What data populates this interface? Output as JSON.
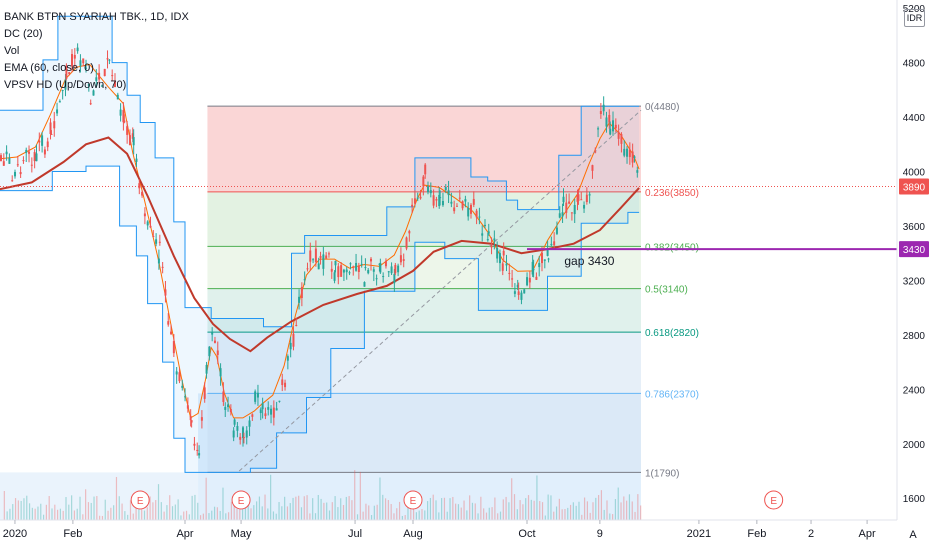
{
  "legend": {
    "title": "BANK BTPN SYARIAH TBK., 1D, IDX",
    "indicators": [
      "DC (20)",
      "Vol",
      "EMA (60, close, 0)",
      "VPSV HD (Up/Down, 70)"
    ]
  },
  "currency_label": "IDR",
  "auto_label": "A",
  "colors": {
    "up": "#26a69a",
    "down": "#ef5350",
    "ema": "#c0392b",
    "donchian": "#2196f3",
    "donchian_mid": "#ff6d00",
    "gap_line": "#9c27b0",
    "price_tag": "#ef5350"
  },
  "chart_data": {
    "type": "candlestick",
    "symbol": "BANK BTPN SYARIAH TBK.",
    "interval": "1D",
    "exchange": "IDX",
    "y_axis": {
      "ticks": [
        1600,
        2000,
        2400,
        2800,
        3200,
        3600,
        4000,
        4400,
        4800,
        5200
      ],
      "tick_labels": [
        "1600",
        "2000",
        "2400",
        "2800",
        "3200",
        "3600",
        "4000",
        "4400",
        "4800",
        "5200"
      ],
      "range": [
        1440,
        5260
      ]
    },
    "x_axis": {
      "labels": [
        "2020",
        "Feb",
        "Apr",
        "May",
        "Jul",
        "Aug",
        "Oct",
        "9",
        "2021",
        "Feb",
        "2",
        "Apr"
      ],
      "positions": [
        "2020-01-01",
        "2020-02-01",
        "2020-04-01",
        "2020-05-01",
        "2020-07-01",
        "2020-08-01",
        "2020-10-01",
        "2020-11-09",
        "2021-01-01",
        "2021-02-01",
        "2021-03-02",
        "2021-04-01"
      ],
      "range": [
        "2019-12-24",
        "2021-04-17"
      ]
    },
    "price_close": {
      "value": 3890,
      "label": "3890"
    },
    "gap": {
      "value": 3430,
      "label": "3430",
      "annotation": "gap 3430",
      "from": "2020-10-01",
      "to": "2021-04-17"
    },
    "fibonacci": {
      "from": "2020-04-13",
      "to": "2020-12-01",
      "levels": [
        {
          "ratio": 0,
          "price": 4480,
          "label": "0(4480)",
          "color": "#787b86",
          "fill": "#f8c8c8"
        },
        {
          "ratio": 0.236,
          "price": 3850,
          "label": "0.236(3850)",
          "color": "#ef5350",
          "fill": "#d9eed8"
        },
        {
          "ratio": 0.382,
          "price": 3450,
          "label": "0.382(3450)",
          "color": "#4caf50",
          "fill": "#e7f3e3"
        },
        {
          "ratio": 0.5,
          "price": 3140,
          "label": "0.5(3140)",
          "color": "#4caf50",
          "fill": "#d6ece6"
        },
        {
          "ratio": 0.618,
          "price": 2820,
          "label": "0.618(2820)",
          "color": "#089981",
          "fill": "#dde9f6"
        },
        {
          "ratio": 0.786,
          "price": 2370,
          "label": "0.786(2370)",
          "color": "#64b5f6",
          "fill": "#e6e6ea"
        },
        {
          "ratio": 1,
          "price": 1790,
          "label": "1(1790)",
          "color": "#787b86",
          "fill": null
        }
      ]
    },
    "volume_profile_end": "2020-12-01",
    "events": [
      {
        "date": "2020-03-08",
        "label": "E"
      },
      {
        "date": "2020-05-01",
        "label": "E"
      },
      {
        "date": "2020-08-01",
        "label": "E"
      },
      {
        "date": "2021-02-10",
        "label": "E"
      }
    ],
    "ema_60": [
      [
        "2019-12-24",
        3870
      ],
      [
        "2020-01-10",
        3920
      ],
      [
        "2020-01-27",
        4070
      ],
      [
        "2020-02-08",
        4200
      ],
      [
        "2020-02-20",
        4250
      ],
      [
        "2020-03-01",
        4130
      ],
      [
        "2020-03-12",
        3820
      ],
      [
        "2020-03-26",
        3380
      ],
      [
        "2020-04-06",
        3070
      ],
      [
        "2020-04-16",
        2880
      ],
      [
        "2020-04-25",
        2770
      ],
      [
        "2020-05-06",
        2680
      ],
      [
        "2020-05-15",
        2780
      ],
      [
        "2020-05-28",
        2900
      ],
      [
        "2020-06-14",
        3020
      ],
      [
        "2020-07-02",
        3100
      ],
      [
        "2020-07-18",
        3160
      ],
      [
        "2020-08-01",
        3270
      ],
      [
        "2020-08-12",
        3410
      ],
      [
        "2020-08-27",
        3490
      ],
      [
        "2020-09-12",
        3470
      ],
      [
        "2020-09-28",
        3400
      ],
      [
        "2020-10-12",
        3430
      ],
      [
        "2020-10-26",
        3470
      ],
      [
        "2020-11-09",
        3570
      ],
      [
        "2020-11-20",
        3730
      ],
      [
        "2020-11-30",
        3880
      ]
    ],
    "donchian_upper": [
      [
        "2019-12-24",
        4450
      ],
      [
        "2020-01-16",
        4450
      ],
      [
        "2020-01-16",
        4820
      ],
      [
        "2020-01-24",
        4820
      ],
      [
        "2020-01-24",
        5140
      ],
      [
        "2020-02-22",
        5140
      ],
      [
        "2020-02-22",
        4800
      ],
      [
        "2020-03-01",
        4800
      ],
      [
        "2020-03-01",
        4560
      ],
      [
        "2020-03-08",
        4560
      ],
      [
        "2020-03-08",
        4360
      ],
      [
        "2020-03-16",
        4360
      ],
      [
        "2020-03-16",
        4100
      ],
      [
        "2020-03-26",
        4100
      ],
      [
        "2020-03-26",
        3630
      ],
      [
        "2020-04-01",
        3630
      ],
      [
        "2020-04-01",
        3000
      ],
      [
        "2020-04-15",
        3000
      ],
      [
        "2020-04-15",
        2920
      ],
      [
        "2020-05-13",
        2920
      ],
      [
        "2020-05-13",
        2860
      ],
      [
        "2020-05-28",
        2860
      ],
      [
        "2020-05-28",
        3400
      ],
      [
        "2020-06-04",
        3400
      ],
      [
        "2020-06-04",
        3530
      ],
      [
        "2020-07-18",
        3530
      ],
      [
        "2020-07-18",
        3740
      ],
      [
        "2020-08-02",
        3740
      ],
      [
        "2020-08-02",
        4100
      ],
      [
        "2020-09-01",
        4100
      ],
      [
        "2020-09-01",
        3960
      ],
      [
        "2020-09-10",
        3960
      ],
      [
        "2020-09-10",
        3930
      ],
      [
        "2020-09-20",
        3930
      ],
      [
        "2020-09-20",
        3790
      ],
      [
        "2020-09-26",
        3790
      ],
      [
        "2020-09-26",
        3720
      ],
      [
        "2020-10-18",
        3720
      ],
      [
        "2020-10-18",
        4120
      ],
      [
        "2020-10-30",
        4120
      ],
      [
        "2020-10-30",
        4480
      ],
      [
        "2020-11-30",
        4480
      ]
    ],
    "donchian_lower": [
      [
        "2019-12-24",
        3860
      ],
      [
        "2020-01-21",
        3860
      ],
      [
        "2020-01-21",
        4000
      ],
      [
        "2020-02-08",
        4000
      ],
      [
        "2020-02-08",
        4040
      ],
      [
        "2020-02-26",
        4040
      ],
      [
        "2020-02-26",
        3600
      ],
      [
        "2020-03-06",
        3600
      ],
      [
        "2020-03-06",
        3380
      ],
      [
        "2020-03-12",
        3380
      ],
      [
        "2020-03-12",
        3030
      ],
      [
        "2020-03-20",
        3030
      ],
      [
        "2020-03-20",
        2600
      ],
      [
        "2020-03-26",
        2600
      ],
      [
        "2020-03-26",
        2040
      ],
      [
        "2020-04-01",
        2040
      ],
      [
        "2020-04-01",
        1790
      ],
      [
        "2020-05-06",
        1790
      ],
      [
        "2020-05-06",
        1820
      ],
      [
        "2020-05-20",
        1820
      ],
      [
        "2020-05-20",
        2080
      ],
      [
        "2020-06-05",
        2080
      ],
      [
        "2020-06-05",
        2340
      ],
      [
        "2020-06-18",
        2340
      ],
      [
        "2020-06-18",
        2700
      ],
      [
        "2020-07-06",
        2700
      ],
      [
        "2020-07-06",
        3120
      ],
      [
        "2020-08-02",
        3120
      ],
      [
        "2020-08-02",
        3480
      ],
      [
        "2020-08-18",
        3480
      ],
      [
        "2020-08-18",
        3360
      ],
      [
        "2020-09-05",
        3360
      ],
      [
        "2020-09-05",
        2980
      ],
      [
        "2020-10-12",
        2980
      ],
      [
        "2020-10-12",
        3230
      ],
      [
        "2020-10-30",
        3230
      ],
      [
        "2020-10-30",
        3620
      ],
      [
        "2020-11-24",
        3620
      ],
      [
        "2020-11-24",
        3700
      ],
      [
        "2020-11-30",
        3700
      ]
    ],
    "price_path": [
      [
        "2019-12-24",
        4080
      ],
      [
        "2020-01-02",
        4000
      ],
      [
        "2020-01-12",
        4120
      ],
      [
        "2020-01-20",
        4300
      ],
      [
        "2020-01-28",
        4720
      ],
      [
        "2020-02-03",
        4900
      ],
      [
        "2020-02-10",
        4560
      ],
      [
        "2020-02-20",
        4780
      ],
      [
        "2020-02-28",
        4400
      ],
      [
        "2020-03-04",
        4200
      ],
      [
        "2020-03-10",
        3700
      ],
      [
        "2020-03-18",
        3400
      ],
      [
        "2020-03-24",
        2800
      ],
      [
        "2020-03-30",
        2400
      ],
      [
        "2020-04-04",
        2150
      ],
      [
        "2020-04-08",
        1900
      ],
      [
        "2020-04-12",
        2500
      ],
      [
        "2020-04-15",
        2900
      ],
      [
        "2020-04-18",
        2600
      ],
      [
        "2020-04-22",
        2300
      ],
      [
        "2020-04-27",
        2100
      ],
      [
        "2020-05-02",
        2050
      ],
      [
        "2020-05-08",
        2300
      ],
      [
        "2020-05-12",
        2250
      ],
      [
        "2020-05-18",
        2200
      ],
      [
        "2020-05-24",
        2500
      ],
      [
        "2020-05-30",
        2900
      ],
      [
        "2020-06-05",
        3300
      ],
      [
        "2020-06-12",
        3400
      ],
      [
        "2020-06-20",
        3250
      ],
      [
        "2020-06-28",
        3300
      ],
      [
        "2020-07-06",
        3200
      ],
      [
        "2020-07-14",
        3330
      ],
      [
        "2020-07-22",
        3260
      ],
      [
        "2020-07-28",
        3450
      ],
      [
        "2020-08-03",
        3850
      ],
      [
        "2020-08-07",
        3950
      ],
      [
        "2020-08-15",
        3780
      ],
      [
        "2020-08-24",
        3800
      ],
      [
        "2020-09-02",
        3700
      ],
      [
        "2020-09-10",
        3500
      ],
      [
        "2020-09-18",
        3350
      ],
      [
        "2020-09-26",
        3080
      ],
      [
        "2020-10-04",
        3250
      ],
      [
        "2020-10-12",
        3360
      ],
      [
        "2020-10-20",
        3750
      ],
      [
        "2020-10-28",
        3780
      ],
      [
        "2020-11-03",
        3850
      ],
      [
        "2020-11-09",
        4400
      ],
      [
        "2020-11-14",
        4350
      ],
      [
        "2020-11-20",
        4200
      ],
      [
        "2020-11-27",
        4150
      ],
      [
        "2020-11-30",
        3890
      ]
    ],
    "volume": {
      "max_fraction_of_pane": 1,
      "note_values": []
    }
  }
}
